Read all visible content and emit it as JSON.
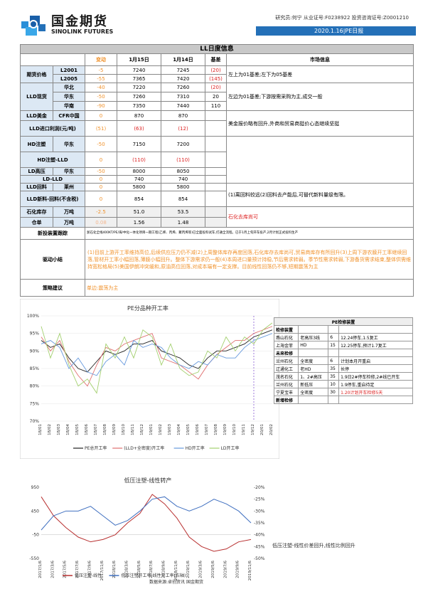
{
  "header": {
    "brand_cn": "国金期货",
    "brand_en": "SINOLINK FUTURES",
    "license": "研究员:何宁  从业证号:F0238922  投资咨询证号:Z0001210",
    "date_label": "2020.1.16|PE日报"
  },
  "table": {
    "title": "LL日度信息",
    "headers": {
      "change": "变动",
      "d1": "1月15日",
      "d2": "1月14日",
      "basis": "基差",
      "market": "市场信息"
    },
    "futures": {
      "label": "期货价格",
      "rows": [
        {
          "name": "L2001",
          "chg": "-5",
          "v1": "7240",
          "v2": "7245",
          "basis": "(20)"
        },
        {
          "name": "L2005",
          "chg": "-55",
          "v1": "7365",
          "v2": "7420",
          "basis": "(145)"
        }
      ],
      "info": "左上为01基差;左下为05基差"
    },
    "spot": {
      "label": "LLD现货",
      "rows": [
        {
          "name": "华北",
          "chg": "-40",
          "v1": "7220",
          "v2": "7260",
          "basis": "(20)"
        },
        {
          "name": "华东",
          "chg": "-50",
          "v1": "7260",
          "v2": "7310",
          "basis": "20"
        },
        {
          "name": "华南",
          "chg": "-90",
          "v1": "7350",
          "v2": "7440",
          "basis": "110"
        }
      ],
      "info": "左边为01基差;下游按需采购为主,成交一般"
    },
    "usd": {
      "label": "LLD美金",
      "sub": "CFR中国",
      "chg": "0",
      "v1": "870",
      "v2": "870"
    },
    "import_margin": {
      "label": "LLD进口利润(元/吨)",
      "chg": "(51)",
      "v1": "(63)",
      "v2": "(12)"
    },
    "usd_info": "美金报价略有回升,外商和贸易商挺价心态继续坚挺",
    "hd": {
      "label": "HD注塑",
      "sub": "华东",
      "chg": "-50",
      "v1": "7150",
      "v2": "7200"
    },
    "hd_lld": {
      "label": "HD注塑-LLD",
      "chg": "0",
      "v1": "(110)",
      "v2": "(110)"
    },
    "ld": {
      "label": "LD高压",
      "sub": "华东",
      "chg": "-50",
      "v1": "8000",
      "v2": "8050"
    },
    "ld_lld": {
      "label": "LD-LLD",
      "chg": "0",
      "v1": "740",
      "v2": "740"
    },
    "recycle": {
      "label": "LLD回料",
      "sub": "莱州",
      "chg": "0",
      "v1": "5800",
      "v2": "5800"
    },
    "new_recycle": {
      "label": "LLD新料-回料(不含税)",
      "chg": "0",
      "v1": "854",
      "v2": "854"
    },
    "recycle_info": "(1)离回料较远(2)回料去产能后,可替代新料量级有限。",
    "inventory": {
      "label": "石化库存",
      "unit": "万吨",
      "chg": "-2.5",
      "v1": "51.0",
      "v2": "53.5",
      "info": "石化去库尚可"
    },
    "warrant": {
      "label": "仓单",
      "unit": "万吨",
      "chg": "0.08",
      "v1": "1.56",
      "v2": "1.48"
    },
    "new_device": {
      "label": "新投装置跟踪",
      "text": "浙石化全线400KT/PE/海/中化一体化项目一期工程(乙烯、丙烯、聚丙烯等)已全面投料试车,打通全流程。已于1月上旬开车投产,2月计划正式投料生产"
    },
    "driver": {
      "label": "驱动小结",
      "text": "(1)目前上游开工率维持高位,后续供应压力仍不减(2)上周整体库存再度回落,石化库存去库尚可,贸易商库存有所回升(3)上周下游农膜开工率继续回落,管材开工率小幅回落,薄膜小幅回升。整体下游需求仍一般(4)本周进口量预计持稳,节后需求转弱。季节性需求转弱,下游备货需求结束,整体供需维持宽松格局(5)美国伊朗冲突缓和,原油高位回落,对成本端有一定支撑。目前线性回落仍不够,短期震荡为主"
    },
    "strategy": {
      "label": "策略建议",
      "text": "单边:震荡为主"
    }
  },
  "chart1": {
    "chart_data": {
      "type": "line",
      "title": "PE分品种开工率",
      "x": [
        "18/01",
        "18/02",
        "18/03",
        "18/04",
        "18/05",
        "18/06",
        "18/07",
        "18/08",
        "18/09",
        "18/10",
        "18/11",
        "18/12",
        "19/01",
        "19/02",
        "19/03",
        "19/04",
        "19/05",
        "19/06",
        "19/07",
        "19/08",
        "19/09",
        "19/10",
        "19/11",
        "19/12",
        "20/01",
        "20/02"
      ],
      "ylim": [
        70,
        100
      ],
      "yticks": [
        "70%",
        "75%",
        "80%",
        "85%",
        "90%",
        "95%",
        "100%"
      ],
      "series": [
        {
          "name": "PE总开工率",
          "color": "#222222",
          "values": [
            93,
            91,
            92,
            88,
            85,
            84,
            87,
            90,
            89,
            90,
            92,
            92,
            93,
            90,
            89,
            88,
            86,
            85,
            88,
            90,
            90,
            91,
            92,
            94,
            95,
            96
          ]
        },
        {
          "name": "(LLD+全密度)开工率",
          "color": "#e07070",
          "values": [
            94,
            90,
            93,
            87,
            83,
            80,
            86,
            91,
            90,
            92,
            93,
            94,
            95,
            88,
            87,
            86,
            84,
            82,
            86,
            89,
            91,
            93,
            93,
            95,
            96,
            97
          ]
        },
        {
          "name": "HD开工率",
          "color": "#6699dd",
          "values": [
            92,
            93,
            91,
            85,
            88,
            84,
            83,
            87,
            89,
            86,
            93,
            91,
            92,
            91,
            88,
            86,
            85,
            87,
            86,
            89,
            88,
            88,
            91,
            93,
            94,
            95
          ]
        },
        {
          "name": "LD开工率",
          "color": "#a4d070",
          "values": [
            97,
            88,
            95,
            86,
            80,
            82,
            78,
            92,
            88,
            94,
            88,
            96,
            94,
            86,
            92,
            85,
            83,
            84,
            90,
            88,
            94,
            90,
            94,
            92,
            96,
            98
          ]
        }
      ]
    }
  },
  "side_table": {
    "title": "PE检修装置",
    "rows": [
      [
        "检修装置",
        "",
        "",
        ""
      ],
      [
        "燕山石化",
        "老高压3线",
        "6",
        "12.24停车,1.5复工"
      ],
      [
        "上海金菲",
        "HD",
        "15",
        "12.25停车,预计1.7复工"
      ],
      [
        "未来检修",
        "",
        "",
        ""
      ],
      [
        "兰州石化",
        "全密度",
        "6",
        "计划本月开重启"
      ],
      [
        "辽通化工",
        "老HD",
        "35",
        "长停"
      ],
      [
        "茂名石化",
        "1、2#高压",
        "35",
        "1.9日2#停车检修,2#线已开车"
      ],
      [
        "兰州石化",
        "新低压",
        "10",
        "1.9停车,重启待定"
      ],
      [
        "宁夏宝丰",
        "全密度",
        "30",
        "1.20计划开车检修5天"
      ],
      [
        "新增检修",
        "",
        "",
        ""
      ]
    ]
  },
  "chart2": {
    "chart_data": {
      "type": "line",
      "title": "低压注塑-线性转产",
      "x": [
        "2017/1/6",
        "2017/3/6",
        "2017/5/6",
        "2017/7/6",
        "2017/9/6",
        "2017/11/6",
        "2018/1/6",
        "2018/3/6",
        "2018/5/6",
        "2018/7/6",
        "2018/9/6",
        "2018/11/6",
        "2019/1/6",
        "2019/3/6",
        "2019/5/6",
        "2019/7/6",
        "2019/9/6",
        "2019/11/6"
      ],
      "ylim_left": [
        -550,
        950
      ],
      "yticks_left": [
        "-550",
        "-50",
        "450",
        "950"
      ],
      "ylim_right": [
        -50,
        -20
      ],
      "yticks_right": [
        "-20%",
        "-25%",
        "-30%",
        "-35%",
        "-40%",
        "-45%",
        "-50%"
      ],
      "series": [
        {
          "name": "低压注塑-线性",
          "color": "#b83030",
          "axis": "left",
          "values": [
            750,
            350,
            100,
            -100,
            -200,
            -150,
            -50,
            200,
            400,
            800,
            600,
            300,
            -100,
            -300,
            -400,
            -350,
            -200,
            -150
          ]
        },
        {
          "name": "低压注塑开工率-线性开工率(右轴)",
          "color": "#4070c0",
          "axis": "right",
          "values": [
            -38,
            -32,
            -30,
            -30,
            -28,
            -32,
            -36,
            -34,
            -30,
            -25,
            -24,
            -28,
            -30,
            -28,
            -25,
            -27,
            -30,
            -35
          ]
        }
      ]
    },
    "source": "数据来源:卓创资讯 国金期货",
    "note": "低压注塑-线性价差回升,线性比例回升"
  }
}
